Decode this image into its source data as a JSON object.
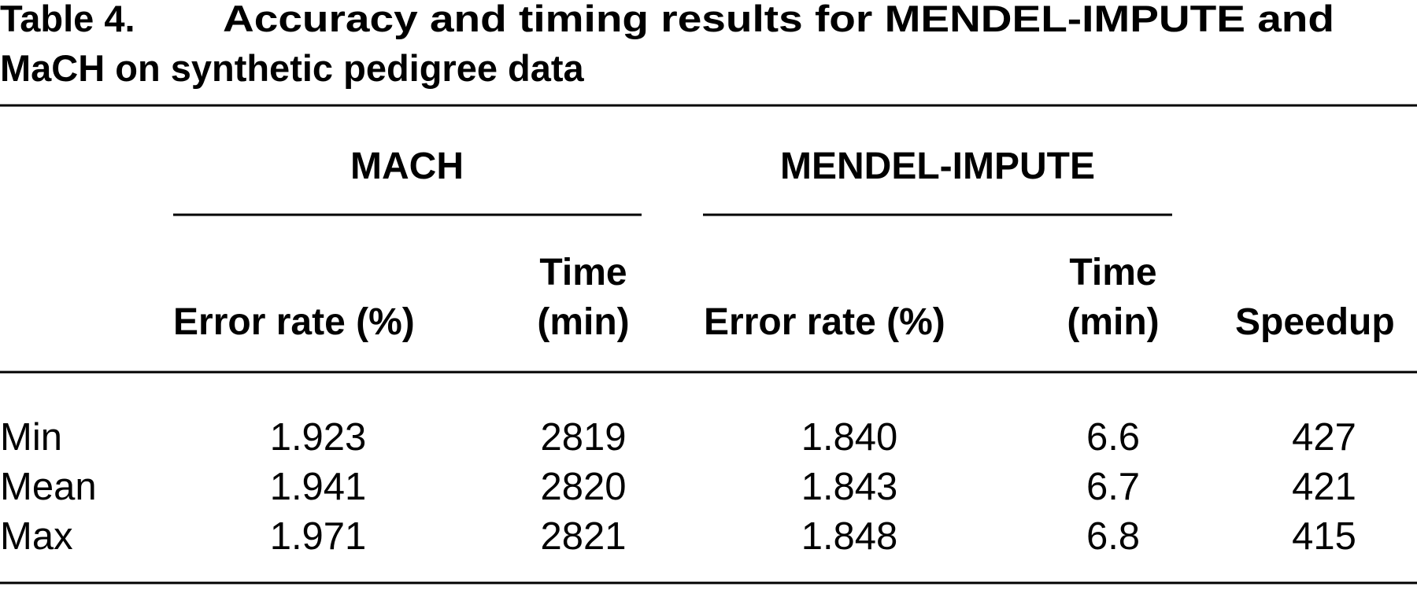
{
  "caption": {
    "label": "Table 4.",
    "text": [
      "Accuracy and timing results for MENDEL-IMPUTE and",
      "MaCH on synthetic pedigree data"
    ]
  },
  "table": {
    "groups": [
      "MACH",
      "MENDEL-IMPUTE"
    ],
    "columns": [
      [
        "Error rate (%)"
      ],
      [
        "Time",
        "(min)"
      ],
      [
        "Error rate (%)"
      ],
      [
        "Time",
        "(min)"
      ],
      [
        "Speedup"
      ]
    ],
    "rows": [
      [
        "Min",
        "1.923",
        "2819",
        "1.840",
        "6.6",
        "427"
      ],
      [
        "Mean",
        "1.941",
        "2820",
        "1.843",
        "6.7",
        "421"
      ],
      [
        "Max",
        "1.971",
        "2821",
        "1.848",
        "6.8",
        "415"
      ]
    ]
  }
}
